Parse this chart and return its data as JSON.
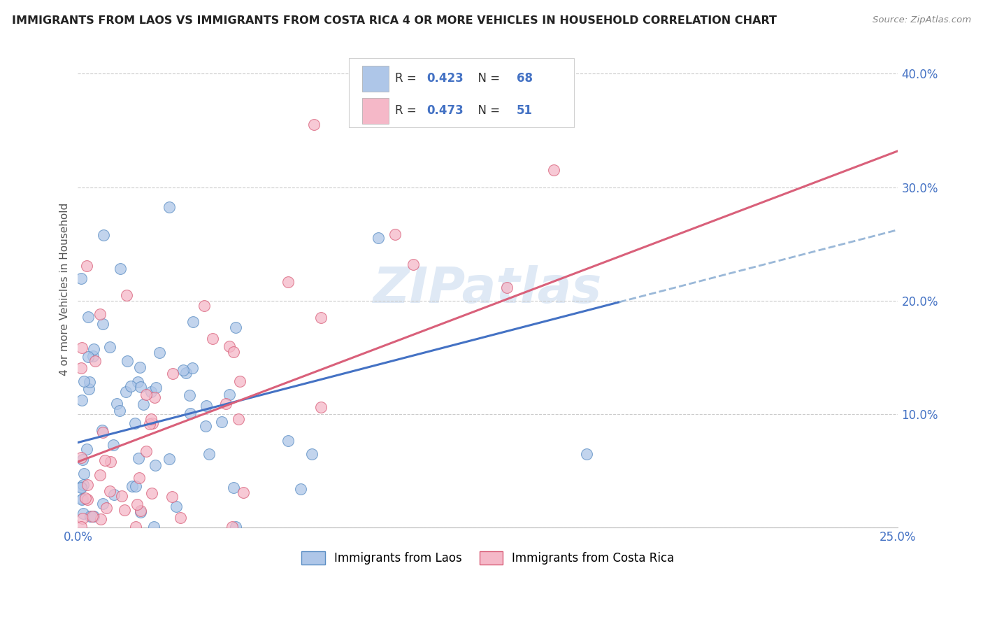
{
  "title": "IMMIGRANTS FROM LAOS VS IMMIGRANTS FROM COSTA RICA 4 OR MORE VEHICLES IN HOUSEHOLD CORRELATION CHART",
  "source": "Source: ZipAtlas.com",
  "ylabel": "4 or more Vehicles in Household",
  "xlim": [
    0.0,
    0.25
  ],
  "ylim": [
    0.0,
    0.42
  ],
  "xticks": [
    0.0,
    0.05,
    0.1,
    0.15,
    0.2,
    0.25
  ],
  "yticks": [
    0.0,
    0.1,
    0.2,
    0.3,
    0.4
  ],
  "xticklabels": [
    "0.0%",
    "",
    "",
    "",
    "",
    "25.0%"
  ],
  "yticklabels": [
    "",
    "10.0%",
    "20.0%",
    "30.0%",
    "40.0%"
  ],
  "laos_color": "#aec6e8",
  "costa_rica_color": "#f5b8c8",
  "laos_edge_color": "#5b8ec4",
  "costa_rica_edge_color": "#d9607a",
  "laos_line_color": "#4472c4",
  "costa_rica_line_color": "#d9607a",
  "laos_dashed_color": "#9ab8d8",
  "laos_R": 0.423,
  "laos_N": 68,
  "costa_rica_R": 0.473,
  "costa_rica_N": 51,
  "watermark": "ZIPatlas",
  "legend_label_laos": "Immigrants from Laos",
  "legend_label_costa_rica": "Immigrants from Costa Rica",
  "laos_line_x0": 0.0,
  "laos_line_y0": 0.075,
  "laos_line_x1": 0.2,
  "laos_line_y1": 0.225,
  "laos_line_xmax_data": 0.165,
  "costa_rica_line_x0": 0.0,
  "costa_rica_line_y0": 0.058,
  "costa_rica_line_x1": 0.25,
  "costa_rica_line_y1": 0.332
}
